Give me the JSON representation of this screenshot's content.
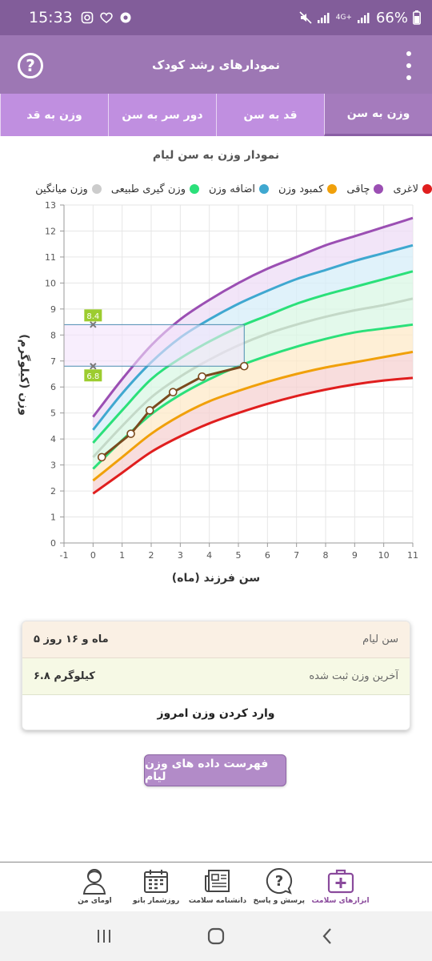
{
  "status_bar": {
    "time": "15:33",
    "battery": "66%",
    "network": "4G+"
  },
  "app": {
    "title": "نمودارهای رشد کودک",
    "help_icon": "question-circle-icon",
    "menu_icon": "vertical-dots-icon"
  },
  "tabs": [
    {
      "label": "وزن به سن",
      "active": true
    },
    {
      "label": "قد به سن",
      "active": false
    },
    {
      "label": "دور سر به سن",
      "active": false
    },
    {
      "label": "وزن به قد",
      "active": false
    }
  ],
  "chart": {
    "title": "نمودار وزن به سن لیام",
    "ylabel": "وزن (کیلوگرم)",
    "xlabel": "سن فرزند (ماه)"
  },
  "legend": [
    {
      "label": "لاغری",
      "color": "#e01e1e"
    },
    {
      "label": "چاقی",
      "color": "#9b4fb3"
    },
    {
      "label": "کمبود وزن",
      "color": "#f0a00a"
    },
    {
      "label": "اضافه وزن",
      "color": "#3fa8d0"
    },
    {
      "label": "وزن گیری طبیعی",
      "color": "#2be07a"
    },
    {
      "label": "وزن میانگین",
      "color": "#cccccc"
    }
  ],
  "chart_data": {
    "type": "line",
    "x_ticks": [
      "-1",
      "0",
      "1",
      "2",
      "3",
      "4",
      "5",
      "6",
      "7",
      "8",
      "9",
      "10",
      "11"
    ],
    "y_ticks": [
      "0",
      "1",
      "2",
      "3",
      "4",
      "5",
      "6",
      "7",
      "8",
      "9",
      "10",
      "11",
      "12",
      "13"
    ],
    "xlim": [
      -1,
      11
    ],
    "ylim": [
      0,
      13
    ],
    "grid": true,
    "series": [
      {
        "name": "لاغری",
        "color": "#e01e1e",
        "x": [
          0,
          1,
          2,
          3,
          4,
          5,
          6,
          7,
          8,
          9,
          10,
          11
        ],
        "y": [
          1.9,
          2.7,
          3.5,
          4.1,
          4.6,
          5.0,
          5.35,
          5.65,
          5.9,
          6.1,
          6.25,
          6.35
        ]
      },
      {
        "name": "کمبود وزن",
        "color": "#f0a00a",
        "x": [
          0,
          1,
          2,
          3,
          4,
          5,
          6,
          7,
          8,
          9,
          10,
          11
        ],
        "y": [
          2.4,
          3.3,
          4.2,
          4.9,
          5.45,
          5.85,
          6.2,
          6.5,
          6.75,
          6.95,
          7.15,
          7.35
        ]
      },
      {
        "name": "وزن گیری طبیعی",
        "color": "#2be07a",
        "x": [
          0,
          1,
          2,
          3,
          4,
          5,
          6,
          7,
          8,
          9,
          10,
          11
        ],
        "y": [
          2.85,
          3.95,
          4.95,
          5.7,
          6.3,
          6.8,
          7.2,
          7.55,
          7.85,
          8.1,
          8.25,
          8.4
        ]
      },
      {
        "name": "وزن میانگین",
        "color": "#c4d9c8",
        "x": [
          0,
          1,
          2,
          3,
          4,
          5,
          6,
          7,
          8,
          9,
          10,
          11
        ],
        "y": [
          3.3,
          4.5,
          5.6,
          6.4,
          7.05,
          7.6,
          8.05,
          8.4,
          8.7,
          8.95,
          9.15,
          9.4
        ]
      },
      {
        "name": "وزن گیری طبیعی",
        "color": "#2be07a",
        "x": [
          0,
          1,
          2,
          3,
          4,
          5,
          6,
          7,
          8,
          9,
          10,
          11
        ],
        "y": [
          3.85,
          5.1,
          6.3,
          7.1,
          7.75,
          8.3,
          8.75,
          9.2,
          9.55,
          9.85,
          10.15,
          10.45
        ]
      },
      {
        "name": "اضافه وزن",
        "color": "#3fa8d0",
        "x": [
          0,
          1,
          2,
          3,
          4,
          5,
          6,
          7,
          8,
          9,
          10,
          11
        ],
        "y": [
          4.35,
          5.75,
          6.95,
          7.9,
          8.6,
          9.2,
          9.7,
          10.15,
          10.5,
          10.85,
          11.15,
          11.45
        ]
      },
      {
        "name": "چاقی",
        "color": "#9b4fb3",
        "x": [
          0,
          1,
          2,
          3,
          4,
          5,
          6,
          7,
          8,
          9,
          10,
          11
        ],
        "y": [
          4.85,
          6.3,
          7.6,
          8.6,
          9.35,
          10.0,
          10.55,
          11.0,
          11.45,
          11.8,
          12.15,
          12.5
        ]
      }
    ],
    "child_points": {
      "color": "#7a4a1e",
      "x": [
        0.3,
        1.3,
        1.95,
        2.75,
        3.75,
        5.2
      ],
      "y": [
        3.3,
        4.2,
        5.1,
        5.8,
        6.4,
        6.8
      ]
    },
    "range_markers": [
      {
        "x": 0,
        "y": 8.4,
        "label": "8.4"
      },
      {
        "x": 0,
        "y": 6.8,
        "label": "6.8"
      }
    ]
  },
  "info_card": {
    "age_label": "سن لیام",
    "age_value": "۵ ماه و ۱۶ روز",
    "weight_label": "آخرین وزن ثبت شده",
    "weight_value": "۶.۸ کیلوگرم",
    "enter_weight": "وارد کردن وزن امروز"
  },
  "list_button": "فهرست داده های وزن لیام",
  "bottom_nav": [
    {
      "label": "ابزارهای سلامت",
      "icon": "medical-kit-icon",
      "active": true
    },
    {
      "label": "پرسش و پاسخ",
      "icon": "question-bubble-icon",
      "active": false
    },
    {
      "label": "دانشنامه سلامت",
      "icon": "newspaper-icon",
      "active": false
    },
    {
      "label": "روزشمار بانو",
      "icon": "calendar-icon",
      "active": false
    },
    {
      "label": "اومای من",
      "icon": "profile-icon",
      "active": false
    }
  ]
}
